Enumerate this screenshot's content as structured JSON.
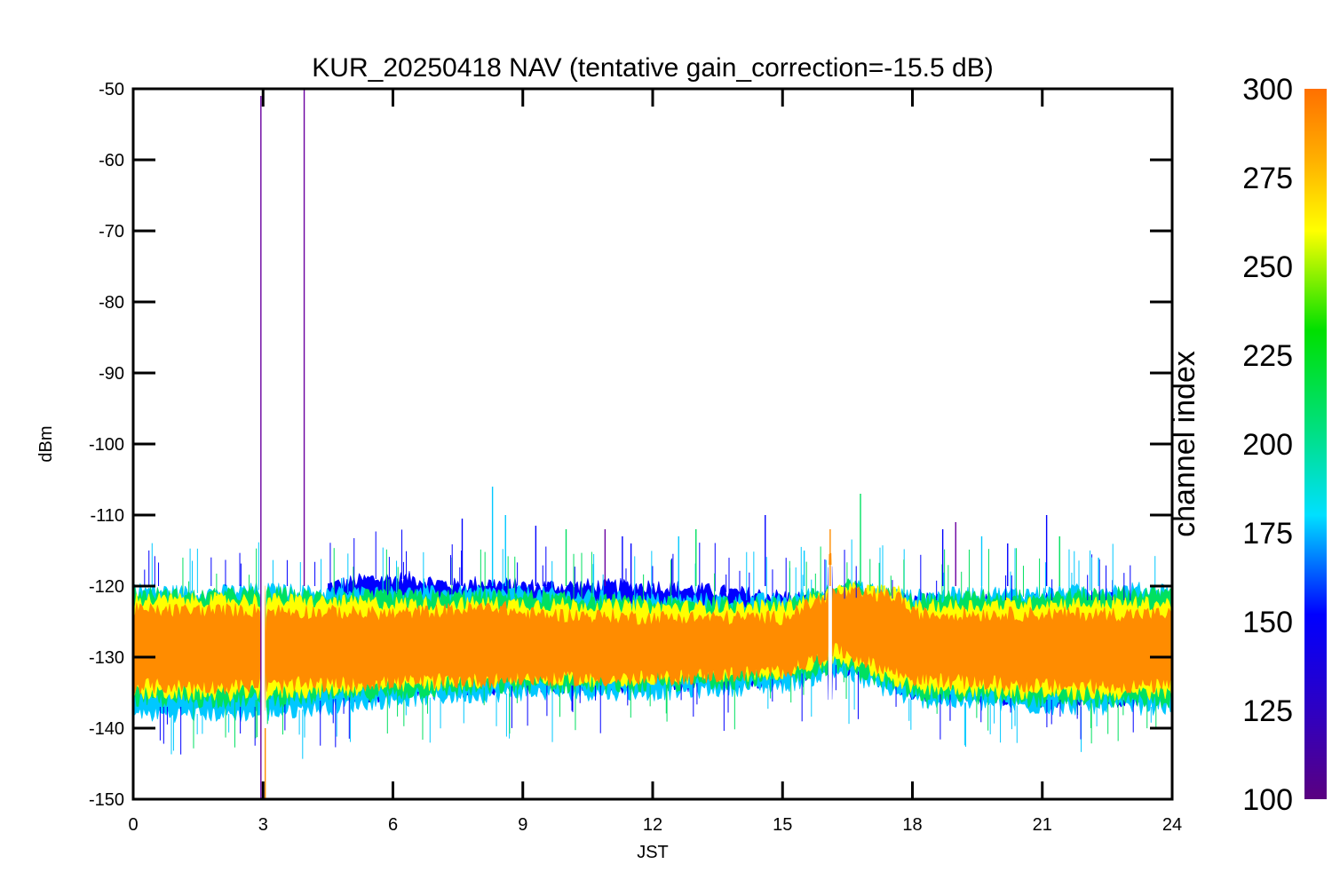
{
  "chart_data": {
    "type": "line",
    "title": "KUR_20250418 NAV (tentative gain_correction=-15.5 dB)",
    "xlabel": "JST",
    "ylabel": "dBm",
    "xlim": [
      0,
      24
    ],
    "ylim": [
      -150,
      -50
    ],
    "x_ticks": [
      "0",
      "3",
      "6",
      "9",
      "12",
      "15",
      "18",
      "21",
      "24"
    ],
    "y_ticks": [
      "-50",
      "-60",
      "-70",
      "-80",
      "-90",
      "-100",
      "-110",
      "-120",
      "-130",
      "-140",
      "-150"
    ],
    "grid": false,
    "colorbar": {
      "label": "channel index",
      "range": [
        100,
        300
      ],
      "ticks": [
        "300",
        "275",
        "250",
        "225",
        "200",
        "175",
        "150",
        "125",
        "100"
      ]
    },
    "series": [
      {
        "color": "#0000ff",
        "points": [
          [
            4.5,
            -120
          ],
          [
            5.0,
            -119.5
          ],
          [
            5.5,
            -119
          ],
          [
            6.0,
            -119
          ],
          [
            6.5,
            -119
          ],
          [
            7.0,
            -119.5
          ],
          [
            7.5,
            -120
          ],
          [
            8.0,
            -119.5
          ],
          [
            9.0,
            -120
          ],
          [
            10.0,
            -120
          ],
          [
            11.0,
            -120
          ],
          [
            12.0,
            -120
          ],
          [
            13.0,
            -120.5
          ],
          [
            14.0,
            -121
          ],
          [
            15.0,
            -121.5
          ],
          [
            16.0,
            -122
          ],
          [
            17.0,
            -121.5
          ],
          [
            18.0,
            -122
          ],
          [
            20.0,
            -122
          ],
          [
            22.0,
            -122
          ],
          [
            24.0,
            -122
          ]
        ],
        "floor": [
          [
            0,
            -137
          ],
          [
            3,
            -137
          ],
          [
            6,
            -135
          ],
          [
            9,
            -134
          ],
          [
            12,
            -134
          ],
          [
            15,
            -133
          ],
          [
            16.3,
            -131
          ],
          [
            18,
            -135
          ],
          [
            21,
            -136
          ],
          [
            24,
            -136
          ]
        ]
      },
      {
        "color": "#00c8ff",
        "points": [
          [
            0,
            -120.5
          ],
          [
            1.5,
            -121
          ],
          [
            3,
            -120.5
          ],
          [
            4.5,
            -121
          ],
          [
            6,
            -121
          ],
          [
            7.5,
            -121
          ],
          [
            9,
            -121
          ],
          [
            10.5,
            -121.5
          ],
          [
            12,
            -122
          ],
          [
            13.5,
            -122
          ],
          [
            15,
            -122
          ],
          [
            16.5,
            -120
          ],
          [
            18,
            -121.5
          ],
          [
            19.5,
            -121
          ],
          [
            21,
            -121
          ],
          [
            22.5,
            -120.5
          ],
          [
            24,
            -120.5
          ]
        ],
        "floor": [
          [
            0,
            -138
          ],
          [
            3,
            -138
          ],
          [
            6,
            -136
          ],
          [
            9,
            -135
          ],
          [
            12,
            -135
          ],
          [
            15,
            -134
          ],
          [
            16.3,
            -132
          ],
          [
            18,
            -136
          ],
          [
            21,
            -137
          ],
          [
            24,
            -137
          ]
        ]
      },
      {
        "color": "#00e060",
        "points": [
          [
            0,
            -121
          ],
          [
            1.5,
            -121.5
          ],
          [
            3,
            -121
          ],
          [
            4.5,
            -121.5
          ],
          [
            6,
            -121.5
          ],
          [
            7.5,
            -121.5
          ],
          [
            9,
            -121.5
          ],
          [
            10.5,
            -122
          ],
          [
            12,
            -122.5
          ],
          [
            13.5,
            -122.5
          ],
          [
            15,
            -122.5
          ],
          [
            16.5,
            -120
          ],
          [
            18,
            -122
          ],
          [
            19.5,
            -121.5
          ],
          [
            21,
            -121.5
          ],
          [
            22.5,
            -121
          ],
          [
            24,
            -121
          ]
        ],
        "floor": [
          [
            0,
            -136
          ],
          [
            3,
            -136
          ],
          [
            6,
            -135
          ],
          [
            9,
            -134
          ],
          [
            12,
            -134
          ],
          [
            15,
            -133
          ],
          [
            16.3,
            -131
          ],
          [
            18,
            -135
          ],
          [
            21,
            -136
          ],
          [
            24,
            -136
          ]
        ]
      },
      {
        "color": "#ffff00",
        "points": [
          [
            0,
            -122
          ],
          [
            3,
            -122
          ],
          [
            6,
            -122.5
          ],
          [
            9,
            -122.5
          ],
          [
            12,
            -123
          ],
          [
            15,
            -123
          ],
          [
            16.5,
            -120.5
          ],
          [
            17.7,
            -121
          ],
          [
            18,
            -123
          ],
          [
            21,
            -122.5
          ],
          [
            24,
            -122.5
          ]
        ],
        "floor": [
          [
            0,
            -135
          ],
          [
            3,
            -135
          ],
          [
            6,
            -134
          ],
          [
            9,
            -133
          ],
          [
            12,
            -133
          ],
          [
            15,
            -132
          ],
          [
            16.3,
            -130
          ],
          [
            18,
            -134
          ],
          [
            21,
            -135
          ],
          [
            24,
            -135
          ]
        ]
      },
      {
        "color": "#ff8c00",
        "points": [
          [
            0,
            -123.5
          ],
          [
            3,
            -123.5
          ],
          [
            6,
            -124
          ],
          [
            8.5,
            -123
          ],
          [
            9,
            -124
          ],
          [
            12,
            -124.5
          ],
          [
            15,
            -124.5
          ],
          [
            16.2,
            -121
          ],
          [
            17.7,
            -121.5
          ],
          [
            18,
            -124
          ],
          [
            21,
            -124
          ],
          [
            24,
            -124
          ]
        ],
        "floor": [
          [
            0,
            -134
          ],
          [
            3,
            -134
          ],
          [
            6,
            -133.5
          ],
          [
            9,
            -133
          ],
          [
            12,
            -133
          ],
          [
            15,
            -132
          ],
          [
            16.3,
            -129
          ],
          [
            18,
            -133
          ],
          [
            21,
            -134
          ],
          [
            24,
            -134
          ]
        ]
      }
    ],
    "spikes": [
      {
        "x": 2.95,
        "y_top": -51,
        "y_bottom": -150,
        "color": "#6a00a0"
      },
      {
        "x": 3.05,
        "y_top": -150,
        "y_bottom": -140,
        "color": "#ff8c00"
      },
      {
        "x": 3.95,
        "y_top": -50,
        "y_bottom": -120,
        "color": "#6a00a0"
      },
      {
        "x": 7.6,
        "y_top": -110.5,
        "y_bottom": -120,
        "color": "#0000ff"
      },
      {
        "x": 8.3,
        "y_top": -106,
        "y_bottom": -120,
        "color": "#00c8ff"
      },
      {
        "x": 8.6,
        "y_top": -110,
        "y_bottom": -120,
        "color": "#00c8ff"
      },
      {
        "x": 9.3,
        "y_top": -111.5,
        "y_bottom": -120,
        "color": "#0000ff"
      },
      {
        "x": 10.0,
        "y_top": -112,
        "y_bottom": -120,
        "color": "#00e060"
      },
      {
        "x": 10.9,
        "y_top": -112,
        "y_bottom": -120,
        "color": "#6a00a0"
      },
      {
        "x": 11.3,
        "y_top": -113,
        "y_bottom": -120,
        "color": "#0000ff"
      },
      {
        "x": 11.5,
        "y_top": -114,
        "y_bottom": -120,
        "color": "#0000ff"
      },
      {
        "x": 12.6,
        "y_top": -113,
        "y_bottom": -120,
        "color": "#00c8ff"
      },
      {
        "x": 13.0,
        "y_top": -112,
        "y_bottom": -120,
        "color": "#00e060"
      },
      {
        "x": 14.6,
        "y_top": -110,
        "y_bottom": -120,
        "color": "#0000ff"
      },
      {
        "x": 15.5,
        "y_top": -115,
        "y_bottom": -120,
        "color": "#00c8ff"
      },
      {
        "x": 16.1,
        "y_top": -112,
        "y_bottom": -120,
        "color": "#ff8c00"
      },
      {
        "x": 16.8,
        "y_top": -107,
        "y_bottom": -120,
        "color": "#00e060"
      },
      {
        "x": 18.7,
        "y_top": -112,
        "y_bottom": -120,
        "color": "#0000ff"
      },
      {
        "x": 19.0,
        "y_top": -111,
        "y_bottom": -120,
        "color": "#6a00a0"
      },
      {
        "x": 19.6,
        "y_top": -113,
        "y_bottom": -120,
        "color": "#00c8ff"
      },
      {
        "x": 20.2,
        "y_top": -114,
        "y_bottom": -120,
        "color": "#0000ff"
      },
      {
        "x": 21.1,
        "y_top": -110,
        "y_bottom": -120,
        "color": "#0000ff"
      },
      {
        "x": 21.4,
        "y_top": -113,
        "y_bottom": -120,
        "color": "#00e060"
      },
      {
        "x": 22.3,
        "y_top": -116,
        "y_bottom": -120,
        "color": "#00c8ff"
      }
    ],
    "gaps": [
      3.0,
      16.1
    ]
  }
}
